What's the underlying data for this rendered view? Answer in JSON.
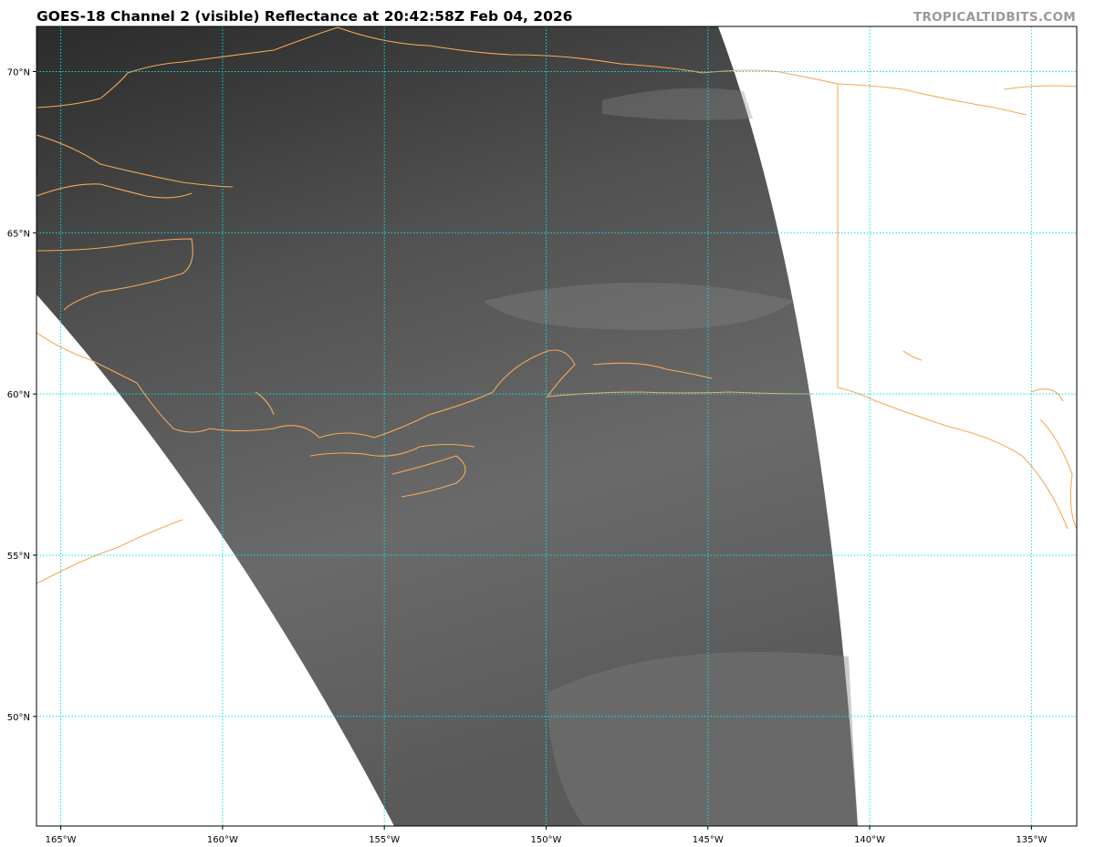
{
  "title": "GOES-18 Channel 2 (visible) Reflectance at 20:42:58Z Feb 04, 2026",
  "watermark": "TROPICALTIDBITS.COM",
  "map": {
    "lon_range": [
      -165.75,
      -133.6
    ],
    "lat_range": [
      46.6,
      71.4
    ],
    "longitudes": [
      -165,
      -160,
      -155,
      -150,
      -145,
      -140,
      -135
    ],
    "latitudes": [
      70,
      65,
      60,
      55,
      50
    ],
    "lon_labels": [
      "165°W",
      "160°W",
      "155°W",
      "150°W",
      "145°W",
      "140°W",
      "135°W"
    ],
    "lat_labels": [
      "70°N",
      "65°N",
      "60°N",
      "55°N",
      "50°N"
    ],
    "gridline_color": "#00e5e5",
    "coastline_color": "#f4a95a",
    "imagery": "grayscale visible satellite reflectance"
  }
}
